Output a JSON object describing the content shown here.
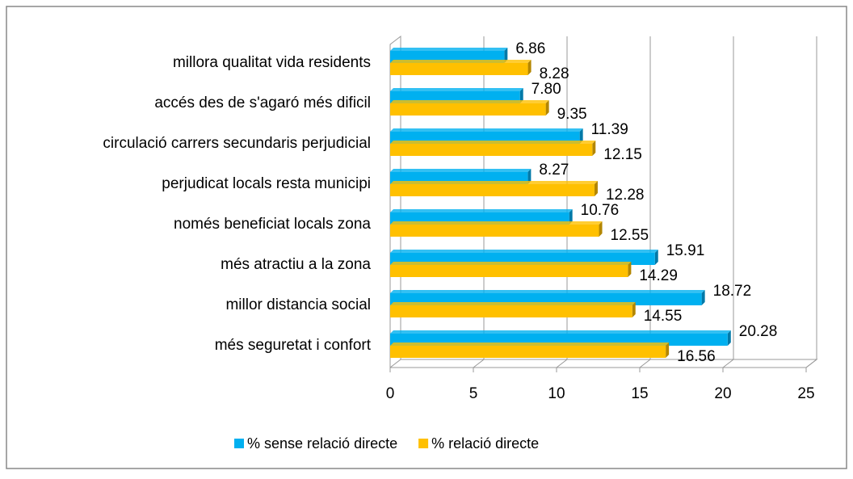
{
  "chart_data": {
    "type": "bar",
    "orientation": "horizontal",
    "categories": [
      "millora qualitat vida residents",
      "accés des de s'agaró més dificil",
      "circulació carrers secundaris perjudicial",
      "perjudicat locals resta municipi",
      "només beneficiat locals zona",
      "més atractiu a la zona",
      "millor distancia social",
      "més seguretat i confort"
    ],
    "series": [
      {
        "name": "% sense relació directe",
        "color": "#00b0f0",
        "values": [
          6.86,
          7.8,
          11.39,
          8.27,
          10.76,
          15.91,
          18.72,
          20.28
        ],
        "value_labels": [
          "6.86",
          "7.80",
          "11.39",
          "8.27",
          "10.76",
          "15.91",
          "18.72",
          "20.28"
        ]
      },
      {
        "name": "% relació directe",
        "color": "#ffc000",
        "values": [
          8.28,
          9.35,
          12.15,
          12.28,
          12.55,
          14.29,
          14.55,
          16.56
        ],
        "value_labels": [
          "8.28",
          "9.35",
          "12.15",
          "12.28",
          "12.55",
          "14.29",
          "14.55",
          "16.56"
        ]
      }
    ],
    "xlim": [
      0,
      25
    ],
    "xticks": [
      0,
      5,
      10,
      15,
      20,
      25
    ],
    "grid": true,
    "legend": "bottom"
  }
}
